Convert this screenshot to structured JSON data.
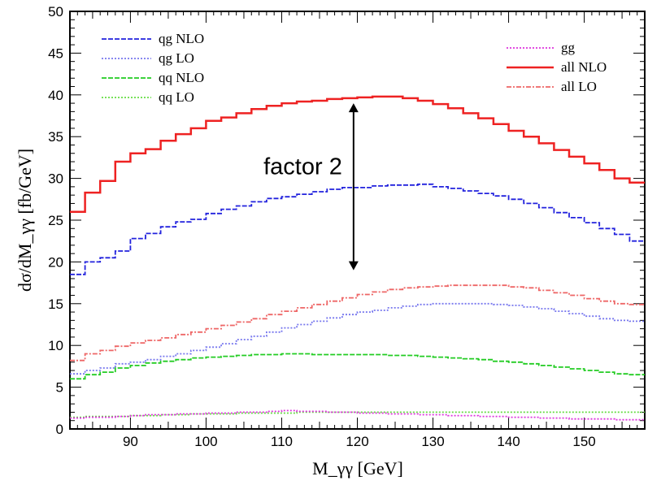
{
  "chart_data": {
    "type": "line",
    "title": "",
    "xlabel": "M_γγ [GeV]",
    "ylabel": "dσ/dM_γγ [fb/GeV]",
    "xlim": [
      82,
      158
    ],
    "ylim": [
      0,
      50
    ],
    "x_ticks": [
      90,
      100,
      110,
      120,
      130,
      140,
      150
    ],
    "y_ticks": [
      0,
      5,
      10,
      15,
      20,
      25,
      30,
      35,
      40,
      45,
      50
    ],
    "grid": false,
    "step": true,
    "bin_width": 2,
    "x": [
      82,
      84,
      86,
      88,
      90,
      92,
      94,
      96,
      98,
      100,
      102,
      104,
      106,
      108,
      110,
      112,
      114,
      116,
      118,
      120,
      122,
      124,
      126,
      128,
      130,
      132,
      134,
      136,
      138,
      140,
      142,
      144,
      146,
      148,
      150,
      152,
      154,
      156
    ],
    "series": [
      {
        "name": "qg NLO",
        "color": "#2222dd",
        "style": "dashed",
        "values": [
          18.5,
          20.0,
          20.5,
          21.3,
          22.8,
          23.4,
          24.2,
          24.8,
          25.1,
          25.8,
          26.3,
          26.7,
          27.2,
          27.6,
          27.8,
          28.1,
          28.4,
          28.7,
          28.9,
          28.9,
          29.1,
          29.2,
          29.2,
          29.3,
          29.0,
          28.8,
          28.5,
          28.2,
          27.9,
          27.5,
          27.0,
          26.5,
          25.9,
          25.3,
          24.7,
          24.0,
          23.3,
          22.5
        ]
      },
      {
        "name": "qg LO",
        "color": "#7777ee",
        "style": "dotted",
        "values": [
          6.6,
          7.0,
          7.3,
          7.8,
          8.0,
          8.3,
          8.7,
          9.0,
          9.4,
          9.8,
          10.2,
          10.7,
          11.1,
          11.6,
          12.1,
          12.5,
          12.9,
          13.3,
          13.7,
          14.0,
          14.2,
          14.5,
          14.7,
          14.9,
          15.0,
          15.0,
          15.0,
          15.0,
          14.9,
          14.8,
          14.6,
          14.4,
          14.1,
          13.8,
          13.5,
          13.2,
          13.0,
          12.9
        ]
      },
      {
        "name": "qq NLO",
        "color": "#22cc22",
        "style": "dashed",
        "values": [
          6.0,
          6.5,
          6.8,
          7.3,
          7.6,
          7.9,
          8.1,
          8.3,
          8.5,
          8.6,
          8.7,
          8.8,
          8.9,
          8.9,
          9.0,
          9.0,
          8.9,
          8.9,
          8.9,
          8.9,
          8.9,
          8.8,
          8.8,
          8.7,
          8.6,
          8.5,
          8.4,
          8.3,
          8.1,
          8.0,
          7.8,
          7.6,
          7.4,
          7.2,
          7.0,
          6.8,
          6.6,
          6.5
        ]
      },
      {
        "name": "qq LO",
        "color": "#66dd44",
        "style": "dotted",
        "values": [
          1.4,
          1.5,
          1.5,
          1.5,
          1.6,
          1.6,
          1.7,
          1.7,
          1.8,
          1.8,
          1.8,
          1.9,
          1.9,
          1.9,
          1.9,
          2.0,
          2.0,
          2.0,
          2.0,
          2.0,
          2.0,
          2.0,
          2.0,
          2.0,
          2.0,
          2.0,
          2.0,
          2.0,
          2.0,
          2.0,
          2.0,
          2.0,
          2.0,
          2.0,
          2.0,
          2.0,
          2.0,
          2.0
        ]
      },
      {
        "name": "gg",
        "color": "#dd33dd",
        "style": "dotted",
        "values": [
          1.3,
          1.4,
          1.4,
          1.5,
          1.6,
          1.7,
          1.7,
          1.8,
          1.8,
          1.9,
          1.9,
          2.0,
          2.0,
          2.1,
          2.2,
          2.1,
          2.1,
          2.0,
          2.0,
          1.9,
          1.9,
          1.8,
          1.8,
          1.7,
          1.7,
          1.6,
          1.6,
          1.5,
          1.5,
          1.4,
          1.4,
          1.3,
          1.3,
          1.2,
          1.2,
          1.2,
          1.1,
          1.1
        ]
      },
      {
        "name": "all NLO",
        "color": "#ee2222",
        "style": "solid",
        "values": [
          26.0,
          28.3,
          29.7,
          32.0,
          33.0,
          33.5,
          34.5,
          35.3,
          36.0,
          36.9,
          37.3,
          37.8,
          38.3,
          38.7,
          39.0,
          39.2,
          39.3,
          39.5,
          39.6,
          39.7,
          39.8,
          39.8,
          39.6,
          39.3,
          38.9,
          38.4,
          37.8,
          37.2,
          36.5,
          35.7,
          35.0,
          34.2,
          33.4,
          32.6,
          31.8,
          31.0,
          30.0,
          29.5
        ]
      },
      {
        "name": "all LO",
        "color": "#ee6666",
        "style": "dashdot",
        "values": [
          8.2,
          9.0,
          9.4,
          9.9,
          10.3,
          10.6,
          10.9,
          11.3,
          11.6,
          12.0,
          12.4,
          12.8,
          13.2,
          13.7,
          14.1,
          14.5,
          14.9,
          15.3,
          15.7,
          16.1,
          16.4,
          16.7,
          16.9,
          17.0,
          17.1,
          17.2,
          17.2,
          17.2,
          17.2,
          17.0,
          16.9,
          16.6,
          16.3,
          16.0,
          15.6,
          15.3,
          15.0,
          14.9
        ]
      }
    ],
    "legend": [
      {
        "label": "qg NLO",
        "series": 0
      },
      {
        "label": "qg LO",
        "series": 1
      },
      {
        "label": "qq NLO",
        "series": 2
      },
      {
        "label": "qq LO",
        "series": 3
      },
      {
        "label": "gg",
        "series": 4
      },
      {
        "label": "all NLO",
        "series": 5
      },
      {
        "label": "all LO",
        "series": 6
      }
    ],
    "annotation": {
      "text": "factor 2",
      "arrow_x": 119.5,
      "arrow_y_top": 39.0,
      "arrow_y_bottom": 19.0
    }
  }
}
